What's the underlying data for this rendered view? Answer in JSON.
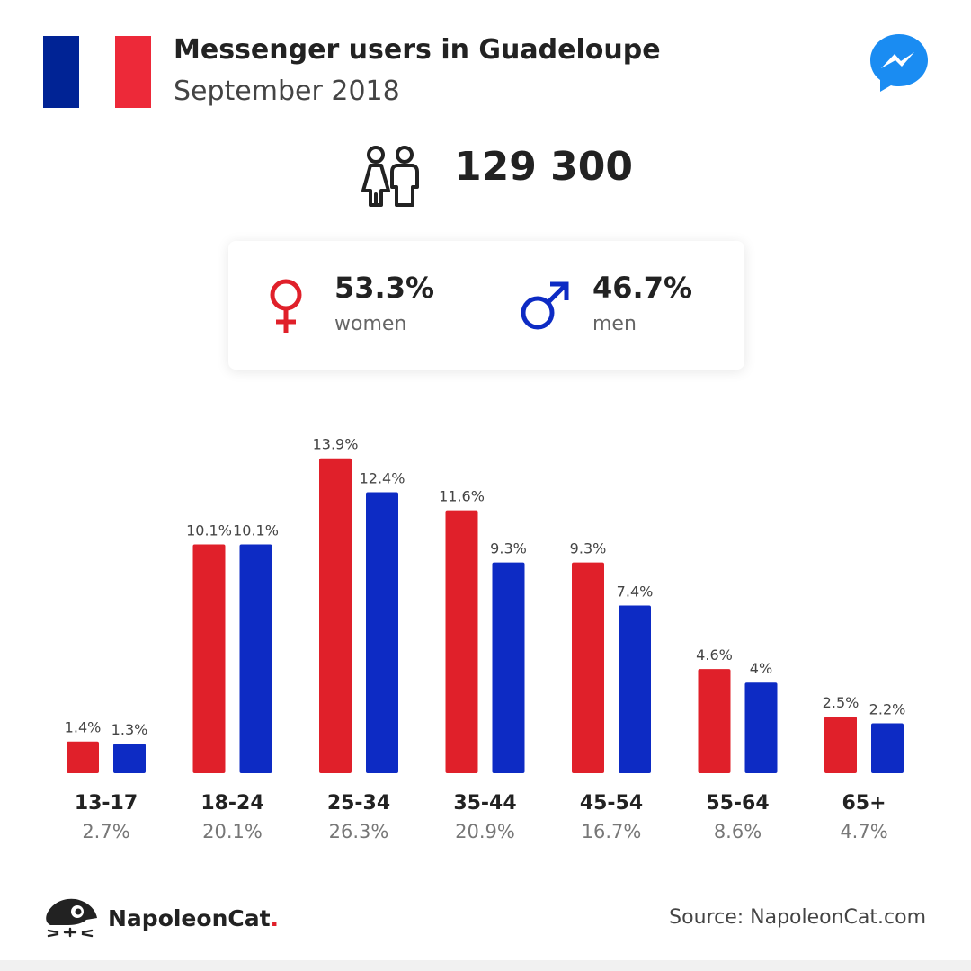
{
  "header": {
    "title": "Messenger users in Guadeloupe",
    "subtitle": "September 2018",
    "flag_colors": [
      "#002395",
      "#ffffff",
      "#ed2939"
    ]
  },
  "total": {
    "value": "129 300",
    "icon": "people-icon"
  },
  "gender": {
    "women": {
      "percent": "53.3%",
      "label": "women",
      "color": "#e0202a",
      "icon": "female-symbol-icon"
    },
    "men": {
      "percent": "46.7%",
      "label": "men",
      "color": "#0d2bc4",
      "icon": "male-symbol-icon"
    }
  },
  "chart_data": {
    "type": "bar",
    "categories": [
      "13-17",
      "18-24",
      "25-34",
      "35-44",
      "45-54",
      "55-64",
      "65+"
    ],
    "group_totals": [
      "2.7%",
      "20.1%",
      "26.3%",
      "20.9%",
      "16.7%",
      "8.6%",
      "4.7%"
    ],
    "series": [
      {
        "values": [
          1.4,
          10.1,
          13.9,
          11.6,
          9.3,
          4.6,
          2.5
        ],
        "labels": [
          "1.4%",
          "10.1%",
          "13.9%",
          "11.6%",
          "9.3%",
          "4.6%",
          "2.5%"
        ],
        "color": "#e0202a"
      },
      {
        "values": [
          1.3,
          10.1,
          12.4,
          9.3,
          7.4,
          4.0,
          2.2
        ],
        "labels": [
          "1.3%",
          "10.1%",
          "12.4%",
          "9.3%",
          "7.4%",
          "4%",
          "2.2%"
        ],
        "color": "#0d2bc4"
      }
    ],
    "grid": false,
    "legend": "none"
  },
  "footer": {
    "brand_name": "NapoleonCat",
    "brand_dot": ".",
    "source": "Source: NapoleonCat.com"
  }
}
